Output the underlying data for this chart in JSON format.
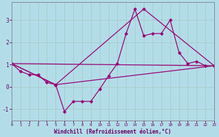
{
  "xlabel": "Windchill (Refroidissement éolien,°C)",
  "background_color": "#b2dde8",
  "grid_color": "#aacccc",
  "line_color": "#990077",
  "xlim": [
    0,
    23
  ],
  "ylim": [
    -1.5,
    3.8
  ],
  "yticks": [
    -1,
    0,
    1,
    2,
    3
  ],
  "xticks": [
    0,
    1,
    2,
    3,
    4,
    5,
    6,
    7,
    8,
    9,
    10,
    11,
    12,
    13,
    14,
    15,
    16,
    17,
    18,
    19,
    20,
    21,
    22,
    23
  ],
  "line1_x": [
    0,
    1,
    2,
    3,
    4,
    5,
    6,
    7,
    8,
    9,
    10,
    11,
    12,
    13,
    14,
    15,
    16,
    17,
    18,
    19,
    20,
    21,
    22
  ],
  "line1_y": [
    1.05,
    0.7,
    0.55,
    0.55,
    0.2,
    0.1,
    -1.1,
    -0.65,
    -0.65,
    -0.65,
    -0.1,
    0.5,
    1.05,
    2.4,
    3.5,
    2.3,
    2.4,
    2.4,
    3.0,
    1.55,
    1.05,
    1.15,
    0.95
  ],
  "line2_x": [
    0,
    23
  ],
  "line2_y": [
    1.05,
    0.95
  ],
  "line3_x": [
    0,
    5,
    15,
    23
  ],
  "line3_y": [
    1.05,
    0.1,
    3.5,
    0.95
  ],
  "line4_x": [
    0,
    5,
    23
  ],
  "line4_y": [
    1.05,
    0.1,
    0.95
  ],
  "markersize": 2.5,
  "linewidth": 0.9
}
